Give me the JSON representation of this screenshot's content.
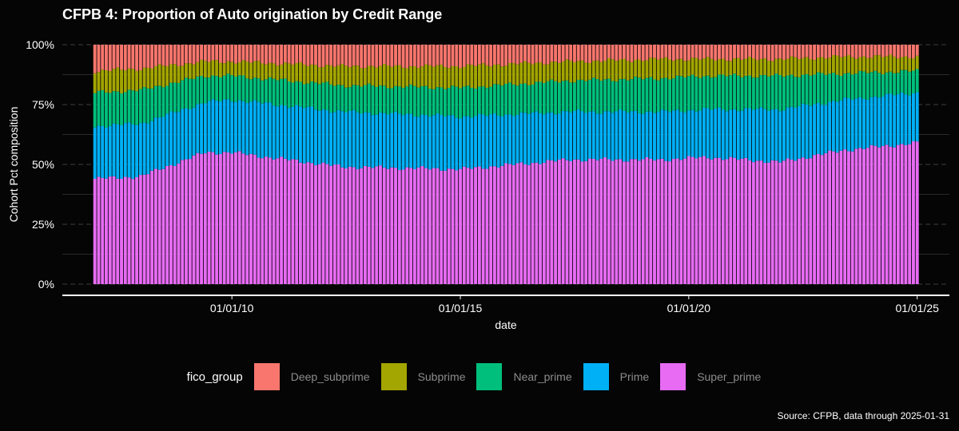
{
  "chart_data": {
    "type": "bar",
    "stacked": true,
    "title": "CFPB 4: Proportion of Auto origination by Credit Range",
    "xlabel": "date",
    "ylabel": "Cohort Pct composition",
    "ylim": [
      0,
      1
    ],
    "y_tick_labels": [
      "0%",
      "25%",
      "50%",
      "75%",
      "100%"
    ],
    "y_tick_values": [
      0,
      0.25,
      0.5,
      0.75,
      1.0
    ],
    "x_tick_labels": [
      "01/01/10",
      "01/01/15",
      "01/01/20",
      "01/01/25"
    ],
    "x_tick_values": [
      "2010-01-01",
      "2015-01-01",
      "2020-01-01",
      "2025-01-01"
    ],
    "x_range": [
      "2006-04-15",
      "2025-09-15"
    ],
    "period": {
      "start": "2007-01",
      "end": "2025-01",
      "frequency": "monthly"
    },
    "grid": true,
    "legend_title": "fico_group",
    "legend_position": "bottom",
    "caption": "Source: CFPB, data through 2025-01-31",
    "stack_order": [
      "Super_prime",
      "Prime",
      "Near_prime",
      "Subprime",
      "Deep_subprime"
    ],
    "legend_order": [
      "Deep_subprime",
      "Subprime",
      "Near_prime",
      "Prime",
      "Super_prime"
    ],
    "colors": {
      "Deep_subprime": "#F8766D",
      "Subprime": "#A3A500",
      "Near_prime": "#00BF7D",
      "Prime": "#00B0F6",
      "Super_prime": "#E76BF3"
    },
    "cumulative_anchors": {
      "dates": [
        "2007-01",
        "2008-01",
        "2009-06",
        "2010-01",
        "2012-06",
        "2015-01",
        "2017-06",
        "2019-06",
        "2020-06",
        "2022-01",
        "2023-06",
        "2025-01"
      ],
      "Super_prime": [
        0.44,
        0.45,
        0.55,
        0.55,
        0.49,
        0.48,
        0.52,
        0.52,
        0.53,
        0.51,
        0.56,
        0.59
      ],
      "Prime": [
        0.66,
        0.67,
        0.76,
        0.77,
        0.72,
        0.7,
        0.72,
        0.72,
        0.73,
        0.73,
        0.77,
        0.8
      ],
      "Near_prime": [
        0.8,
        0.81,
        0.87,
        0.87,
        0.83,
        0.82,
        0.85,
        0.86,
        0.87,
        0.87,
        0.88,
        0.89
      ],
      "Subprime": [
        0.89,
        0.9,
        0.93,
        0.93,
        0.91,
        0.91,
        0.93,
        0.94,
        0.94,
        0.94,
        0.95,
        0.95
      ],
      "Deep_subprime": [
        1.0,
        1.0,
        1.0,
        1.0,
        1.0,
        1.0,
        1.0,
        1.0,
        1.0,
        1.0,
        1.0,
        1.0
      ]
    }
  }
}
